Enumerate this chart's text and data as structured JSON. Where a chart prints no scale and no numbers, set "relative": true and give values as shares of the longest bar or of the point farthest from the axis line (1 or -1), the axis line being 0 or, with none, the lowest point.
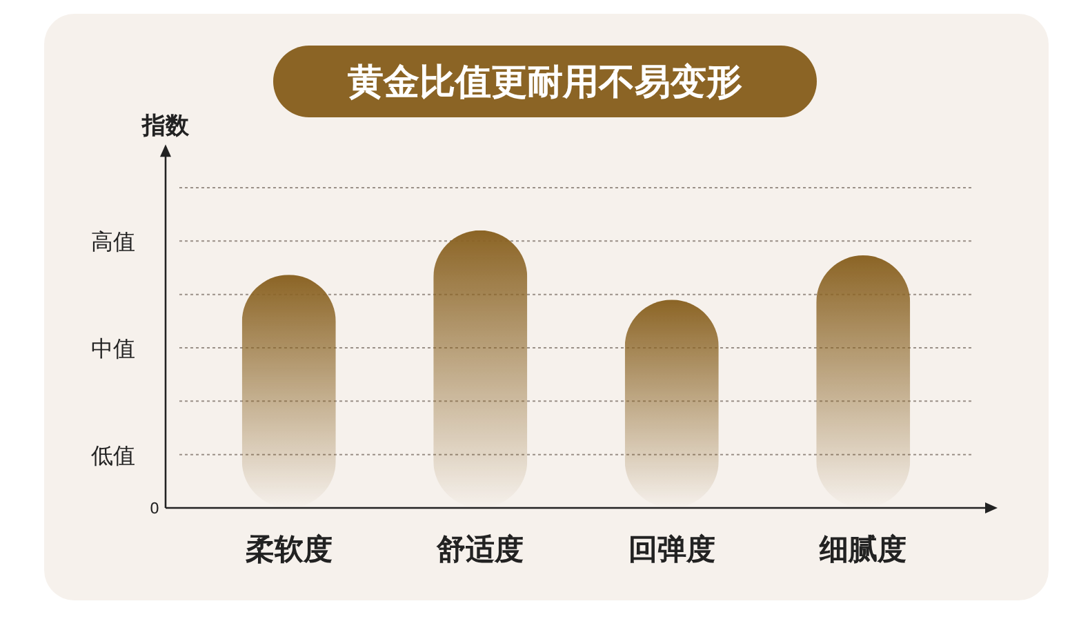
{
  "chart_data": {
    "type": "bar",
    "title": "黄金比值更耐用不易变形",
    "ylabel": "指数",
    "categories": [
      "柔软度",
      "舒适度",
      "回弹度",
      "细腻度"
    ],
    "values": [
      0.84,
      1,
      0.75,
      0.91
    ],
    "relative": true,
    "color": "#8b6425",
    "annotations": [
      "0",
      "低值",
      "中值",
      "高值"
    ],
    "grid": "y"
  }
}
